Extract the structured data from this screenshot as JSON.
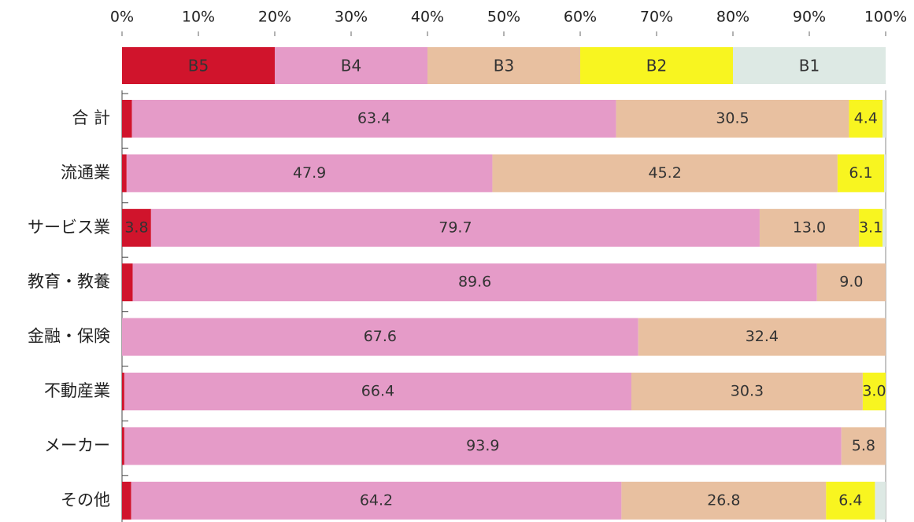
{
  "chart_data": {
    "type": "stacked_barh",
    "categories": [
      "合 計",
      "流通業",
      "サービス業",
      "教育・教養",
      "金融・保険",
      "不動産業",
      "メーカー",
      "その他"
    ],
    "series": [
      {
        "name": "B5",
        "color": "#d0142c",
        "values": [
          1.3,
          0.6,
          3.8,
          1.4,
          0,
          0.3,
          0.3,
          1.2
        ],
        "value_labels": [
          null,
          null,
          "3.8",
          null,
          null,
          null,
          null,
          null
        ]
      },
      {
        "name": "B4",
        "color": "#e59bc8",
        "values": [
          63.4,
          47.9,
          79.7,
          89.6,
          67.6,
          66.4,
          93.9,
          64.2
        ],
        "value_labels": [
          "63.4",
          "47.9",
          "79.7",
          "89.6",
          "67.6",
          "66.4",
          "93.9",
          "64.2"
        ]
      },
      {
        "name": "B3",
        "color": "#e8c0a0",
        "values": [
          30.5,
          45.2,
          13.0,
          9.0,
          32.4,
          30.3,
          5.8,
          26.8
        ],
        "value_labels": [
          "30.5",
          "45.2",
          "13.0",
          "9.0",
          "32.4",
          "30.3",
          "5.8",
          "26.8"
        ]
      },
      {
        "name": "B2",
        "color": "#f8f520",
        "values": [
          4.4,
          6.1,
          3.1,
          0,
          0,
          3.0,
          0,
          6.4
        ],
        "value_labels": [
          "4.4",
          "6.1",
          "3.1",
          null,
          null,
          "3.0",
          null,
          "6.4"
        ]
      },
      {
        "name": "B1",
        "color": "#dde9e4",
        "values": [
          0.4,
          0.2,
          0.4,
          0,
          0,
          0,
          0,
          1.4
        ],
        "value_labels": [
          null,
          null,
          null,
          null,
          null,
          null,
          null,
          null
        ]
      }
    ],
    "xlim": [
      0,
      100
    ],
    "xticks": [
      {
        "value": 0,
        "label": "0%"
      },
      {
        "value": 10,
        "label": "10%"
      },
      {
        "value": 20,
        "label": "20%"
      },
      {
        "value": 30,
        "label": "30%"
      },
      {
        "value": 40,
        "label": "40%"
      },
      {
        "value": 50,
        "label": "50%"
      },
      {
        "value": 60,
        "label": "60%"
      },
      {
        "value": 70,
        "label": "70%"
      },
      {
        "value": 80,
        "label": "80%"
      },
      {
        "value": 90,
        "label": "90%"
      },
      {
        "value": 100,
        "label": "100%"
      }
    ],
    "legend": "top"
  }
}
